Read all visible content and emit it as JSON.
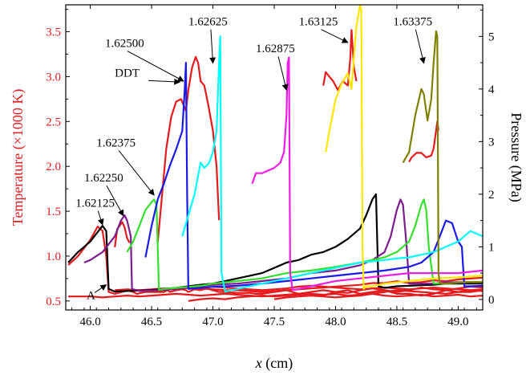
{
  "chart_data": {
    "type": "line",
    "xlabel_var": "x",
    "xlabel_unit": " (cm)",
    "ylabel_left": "Temperature (×1000 K)",
    "ylabel_right": "Pressure (MPa)",
    "xlim": [
      45.8,
      49.2
    ],
    "ylim_left": [
      0.4,
      3.8
    ],
    "ylim_right": [
      -0.2,
      5.6
    ],
    "x_ticks": [
      "46.0",
      "46.5",
      "47.0",
      "47.5",
      "48.0",
      "48.5",
      "49.0"
    ],
    "y_left_ticks": [
      "0.5",
      "1.0",
      "1.5",
      "2.0",
      "2.5",
      "3.0",
      "3.5"
    ],
    "y_right_ticks": [
      "0",
      "1",
      "2",
      "3",
      "4",
      "5"
    ],
    "left_axis_color": "#e41a1c",
    "annotations": [
      {
        "text": "1.62125",
        "tx": 45.88,
        "ty": 1.55,
        "ax": 46.1,
        "ay": 1.35
      },
      {
        "text": "1.62250",
        "tx": 45.95,
        "ty": 1.83,
        "ax": 46.27,
        "ay": 1.45
      },
      {
        "text": "1.62375",
        "tx": 46.05,
        "ty": 2.22,
        "ax": 46.52,
        "ay": 1.68
      },
      {
        "text": "1.62500",
        "tx": 46.12,
        "ty": 3.33,
        "ax": 46.76,
        "ay": 2.95
      },
      {
        "text": "1.62625",
        "tx": 46.8,
        "ty": 3.57,
        "ax": 47.0,
        "ay": 3.15
      },
      {
        "text": "1.62875",
        "tx": 47.35,
        "ty": 3.27,
        "ax": 47.6,
        "ay": 2.85
      },
      {
        "text": "1.63125",
        "tx": 47.7,
        "ty": 3.57,
        "ax": 48.1,
        "ay": 3.38
      },
      {
        "text": "1.63375",
        "tx": 48.47,
        "ty": 3.57,
        "ax": 48.72,
        "ay": 3.15
      },
      {
        "text": "DDT",
        "tx": 46.2,
        "ty": 3.0,
        "ax": 46.73,
        "ay": 2.94
      },
      {
        "text": "A",
        "tx": 45.97,
        "ty": 0.52,
        "ax": 46.13,
        "ay": 0.68
      }
    ],
    "series": [
      {
        "color": "#e41a1c",
        "axis": "left",
        "x": [
          45.82,
          45.9,
          46.0,
          46.06,
          46.1,
          46.13,
          46.15,
          46.2,
          46.26,
          46.3,
          46.35,
          46.38,
          46.45,
          46.5,
          46.55,
          46.6,
          46.63,
          46.65,
          46.7,
          46.75,
          46.78,
          46.8,
          46.85,
          46.9,
          46.95,
          47.0,
          47.05,
          47.1,
          47.2,
          47.3,
          47.35,
          47.4,
          47.5,
          47.6,
          47.7,
          47.8,
          47.9,
          48.0,
          48.1,
          48.2,
          48.3,
          48.4,
          48.5,
          48.55,
          48.6,
          48.7,
          48.8,
          48.9,
          49.0,
          49.1,
          49.2
        ],
        "y": [
          0.9,
          1.0,
          1.18,
          1.33,
          1.28,
          1.0,
          0.6,
          0.58,
          0.6,
          0.62,
          0.6,
          0.58,
          0.6,
          0.6,
          0.6,
          0.6,
          0.62,
          0.6,
          0.62,
          0.63,
          0.62,
          0.6,
          0.63,
          0.62,
          0.64,
          0.62,
          0.6,
          0.6,
          0.59,
          0.59,
          0.58,
          0.58,
          0.6,
          0.62,
          0.58,
          0.58,
          0.56,
          0.6,
          0.62,
          0.58,
          0.6,
          0.62,
          0.58,
          0.58,
          0.58,
          0.56,
          0.58,
          0.62,
          0.6,
          0.6,
          0.62
        ]
      },
      {
        "color": "#e41a1c",
        "axis": "left",
        "x": [
          45.82,
          46.0,
          46.1,
          46.2,
          46.3,
          46.4,
          46.5,
          46.6,
          46.7,
          46.8,
          46.9,
          47.0,
          47.1,
          47.2,
          47.3,
          47.4,
          47.5,
          47.6,
          47.7,
          47.8,
          47.9,
          48.0,
          48.1,
          48.2,
          48.3,
          48.4,
          48.5,
          48.6,
          48.7,
          48.8,
          48.9,
          49.0,
          49.1,
          49.2
        ],
        "y": [
          0.55,
          0.55,
          0.54,
          0.55,
          0.56,
          0.55,
          0.56,
          0.57,
          0.58,
          0.57,
          0.56,
          0.57,
          0.58,
          0.57,
          0.56,
          0.55,
          0.56,
          0.57,
          0.58,
          0.6,
          0.62,
          0.6,
          0.59,
          0.62,
          0.64,
          0.62,
          0.6,
          0.62,
          0.65,
          0.63,
          0.62,
          0.64,
          0.66,
          0.65
        ]
      },
      {
        "color": "#e41a1c",
        "axis": "left",
        "x": [
          46.2,
          46.3,
          46.4,
          46.5,
          46.6,
          46.7,
          46.8,
          46.9,
          47.0,
          47.1,
          47.2,
          47.3,
          47.4,
          47.5,
          47.6,
          47.7,
          47.8,
          47.9,
          48.0,
          48.1,
          48.2,
          48.3,
          48.4,
          48.5,
          48.6,
          48.7,
          48.8,
          48.9,
          49.0,
          49.1,
          49.2
        ],
        "y": [
          0.62,
          0.63,
          0.62,
          0.63,
          0.64,
          0.64,
          0.65,
          0.64,
          0.63,
          0.62,
          0.62,
          0.61,
          0.6,
          0.61,
          0.62,
          0.63,
          0.64,
          0.65,
          0.66,
          0.67,
          0.68,
          0.7,
          0.7,
          0.72,
          0.7,
          0.71,
          0.73,
          0.72,
          0.74,
          0.75,
          0.76
        ]
      },
      {
        "color": "#e41a1c",
        "axis": "left",
        "x": [
          46.8,
          46.9,
          47.0,
          47.1,
          47.2,
          47.3,
          47.4,
          47.5,
          47.6,
          47.7,
          47.8,
          47.9,
          48.0,
          48.1,
          48.2,
          48.3,
          48.4,
          48.5,
          48.6,
          48.7,
          48.8,
          48.9,
          49.0,
          49.1,
          49.2
        ],
        "y": [
          0.5,
          0.52,
          0.53,
          0.52,
          0.54,
          0.55,
          0.56,
          0.55,
          0.56,
          0.57,
          0.58,
          0.57,
          0.58,
          0.56,
          0.57,
          0.58,
          0.56,
          0.55,
          0.56,
          0.57,
          0.55,
          0.56,
          0.57,
          0.55,
          0.56
        ]
      },
      {
        "color": "#e41a1c",
        "axis": "left",
        "x": [
          47.0,
          47.1,
          47.2,
          47.3,
          47.4,
          47.5,
          47.6,
          47.7,
          47.8,
          47.9,
          48.0,
          48.1,
          48.2,
          48.3,
          48.4,
          48.5,
          48.6,
          48.7,
          48.8,
          48.9,
          49.0,
          49.1,
          49.2
        ],
        "y": [
          0.66,
          0.65,
          0.64,
          0.63,
          0.62,
          0.63,
          0.64,
          0.66,
          0.67,
          0.66,
          0.65,
          0.64,
          0.63,
          0.64,
          0.65,
          0.64,
          0.63,
          0.64,
          0.65,
          0.64,
          0.63,
          0.62,
          0.61
        ]
      },
      {
        "color": "#e41a1c",
        "axis": "left",
        "x": [
          47.5,
          47.6,
          47.7,
          47.8,
          47.9,
          48.0,
          48.1,
          48.2,
          48.3,
          48.4,
          48.5,
          48.6,
          48.7,
          48.8,
          48.9,
          49.0,
          49.1,
          49.2
        ],
        "y": [
          0.52,
          0.54,
          0.55,
          0.56,
          0.55,
          0.54,
          0.55,
          0.56,
          0.58,
          0.6,
          0.62,
          0.61,
          0.6,
          0.59,
          0.58,
          0.6,
          0.62,
          0.63
        ]
      },
      {
        "color": "#e41a1c",
        "axis": "left",
        "x": [
          46.2,
          46.22,
          46.26,
          46.28,
          46.3,
          46.32
        ],
        "y": [
          1.1,
          1.3,
          1.38,
          1.32,
          1.2,
          1.15
        ]
      },
      {
        "color": "#e41a1c",
        "axis": "left",
        "x": [
          46.55,
          46.58,
          46.62,
          46.66,
          46.7,
          46.74,
          46.78,
          46.8,
          46.83,
          46.86,
          46.88,
          46.9,
          46.93,
          46.96,
          47.0,
          47.03,
          47.05
        ],
        "y": [
          1.15,
          1.6,
          2.2,
          2.55,
          2.72,
          2.75,
          2.62,
          2.85,
          3.1,
          3.22,
          3.15,
          2.95,
          2.9,
          2.7,
          2.4,
          2.0,
          1.4
        ]
      },
      {
        "color": "#e41a1c",
        "axis": "left",
        "x": [
          47.9,
          47.92,
          47.95,
          47.98,
          48.02,
          48.06,
          48.1,
          48.12,
          48.13,
          48.15,
          48.17
        ],
        "y": [
          2.9,
          3.05,
          3.0,
          2.95,
          2.85,
          2.95,
          2.9,
          3.2,
          3.52,
          3.1,
          2.95
        ]
      },
      {
        "color": "#e41a1c",
        "axis": "left",
        "x": [
          48.6,
          48.62,
          48.66,
          48.7,
          48.74,
          48.78,
          48.8,
          48.82,
          48.83,
          48.84
        ],
        "y": [
          2.05,
          2.1,
          2.15,
          2.15,
          2.1,
          2.12,
          2.2,
          2.4,
          2.5,
          2.4
        ]
      },
      {
        "color": "#000000",
        "axis": "right",
        "x": [
          45.82,
          45.9,
          46.0,
          46.05,
          46.1,
          46.13,
          46.15,
          46.2,
          46.3,
          46.4,
          46.5,
          46.6,
          46.7,
          46.8,
          46.9,
          47.0,
          47.1,
          47.2,
          47.3,
          47.4,
          47.5,
          47.6,
          47.7,
          47.8,
          47.9,
          48.0,
          48.1,
          48.2,
          48.25,
          48.3,
          48.33,
          48.35,
          48.4,
          48.5,
          48.6,
          48.7,
          48.8,
          48.9,
          49.0,
          49.1,
          49.2
        ],
        "y": [
          0.7,
          0.9,
          1.1,
          1.25,
          1.4,
          1.3,
          0.2,
          0.15,
          0.16,
          0.17,
          0.18,
          0.2,
          0.22,
          0.25,
          0.28,
          0.3,
          0.35,
          0.4,
          0.45,
          0.5,
          0.6,
          0.7,
          0.75,
          0.85,
          0.9,
          1.0,
          1.15,
          1.35,
          1.6,
          1.9,
          2.0,
          0.25,
          0.22,
          0.25,
          0.26,
          0.27,
          0.28,
          0.3,
          0.3,
          0.3,
          0.3
        ]
      },
      {
        "color": "#7b1d8c",
        "axis": "right",
        "x": [
          45.95,
          46.0,
          46.1,
          46.2,
          46.25,
          46.28,
          46.3,
          46.33,
          46.34,
          46.4,
          46.5,
          46.6,
          46.7,
          46.8,
          46.9,
          47.0,
          47.2,
          47.4,
          47.6,
          47.8,
          48.0,
          48.2,
          48.3,
          48.4,
          48.45,
          48.5,
          48.53,
          48.55,
          48.58,
          48.6,
          48.7,
          48.8,
          48.9,
          49.0,
          49.1,
          49.2
        ],
        "y": [
          0.7,
          0.75,
          0.9,
          1.2,
          1.5,
          1.6,
          1.5,
          1.2,
          0.2,
          0.16,
          0.17,
          0.18,
          0.2,
          0.22,
          0.25,
          0.28,
          0.3,
          0.35,
          0.4,
          0.5,
          0.55,
          0.65,
          0.75,
          0.9,
          1.2,
          1.7,
          1.9,
          1.8,
          1.0,
          0.3,
          0.3,
          0.3,
          0.32,
          0.33,
          0.33,
          0.33
        ]
      },
      {
        "color": "#33e02c",
        "axis": "right",
        "x": [
          46.3,
          46.35,
          46.4,
          46.45,
          46.5,
          46.52,
          46.54,
          46.55,
          46.56,
          46.6,
          46.7,
          46.8,
          46.9,
          47.0,
          47.2,
          47.4,
          47.6,
          47.8,
          48.0,
          48.2,
          48.4,
          48.5,
          48.6,
          48.65,
          48.7,
          48.72,
          48.74,
          48.76,
          48.8,
          48.9,
          49.0,
          49.1,
          49.2
        ],
        "y": [
          0.9,
          1.1,
          1.4,
          1.7,
          1.85,
          1.9,
          1.8,
          1.0,
          0.18,
          0.2,
          0.22,
          0.24,
          0.26,
          0.3,
          0.35,
          0.4,
          0.5,
          0.55,
          0.62,
          0.7,
          0.8,
          0.9,
          1.1,
          1.4,
          1.8,
          1.9,
          1.7,
          1.0,
          0.3,
          0.3,
          0.32,
          0.33,
          0.33
        ]
      },
      {
        "color": "#1a1ae6",
        "axis": "right",
        "x": [
          46.45,
          46.5,
          46.55,
          46.6,
          46.65,
          46.7,
          46.75,
          46.77,
          46.78,
          46.79,
          46.8,
          46.9,
          47.0,
          47.2,
          47.4,
          47.6,
          47.8,
          48.0,
          48.2,
          48.4,
          48.6,
          48.7,
          48.8,
          48.85,
          48.9,
          48.95,
          49.0,
          49.03,
          49.05,
          49.1,
          49.2
        ],
        "y": [
          0.8,
          1.4,
          1.9,
          2.2,
          2.55,
          2.85,
          3.2,
          4.0,
          4.5,
          2.0,
          0.2,
          0.22,
          0.24,
          0.26,
          0.3,
          0.35,
          0.4,
          0.45,
          0.5,
          0.55,
          0.62,
          0.7,
          0.9,
          1.2,
          1.5,
          1.45,
          1.1,
          1.0,
          0.25,
          0.25,
          0.26
        ]
      },
      {
        "color": "#00ffff",
        "axis": "right",
        "x": [
          46.75,
          46.8,
          46.85,
          46.9,
          46.93,
          46.97,
          47.0,
          47.03,
          47.05,
          47.06,
          47.07,
          47.1,
          47.2,
          47.4,
          47.6,
          47.8,
          48.0,
          48.2,
          48.4,
          48.5,
          48.6,
          48.7,
          48.8,
          48.9,
          49.0,
          49.1,
          49.2
        ],
        "y": [
          1.2,
          1.6,
          2.0,
          2.6,
          2.5,
          2.6,
          2.8,
          3.2,
          4.5,
          5.0,
          0.5,
          0.15,
          0.2,
          0.3,
          0.4,
          0.5,
          0.6,
          0.7,
          0.75,
          0.78,
          0.8,
          0.85,
          0.9,
          1.0,
          1.1,
          1.3,
          1.2
        ]
      },
      {
        "color": "#ee1ee4",
        "axis": "right",
        "x": [
          47.32,
          47.35,
          47.4,
          47.45,
          47.5,
          47.55,
          47.58,
          47.6,
          47.61,
          47.62,
          47.63,
          47.65,
          47.7,
          47.8,
          47.9,
          48.0,
          48.2,
          48.4,
          48.6,
          48.8,
          49.0,
          49.2
        ],
        "y": [
          2.2,
          2.4,
          2.4,
          2.45,
          2.5,
          2.6,
          2.8,
          3.5,
          4.5,
          4.6,
          0.5,
          0.18,
          0.2,
          0.25,
          0.3,
          0.35,
          0.4,
          0.45,
          0.5,
          0.5,
          0.5,
          0.55
        ]
      },
      {
        "color": "#ffe600",
        "axis": "right",
        "x": [
          47.92,
          47.95,
          48.0,
          48.05,
          48.1,
          48.13,
          48.15,
          48.17,
          48.2,
          48.21,
          48.22,
          48.23,
          48.25,
          48.3,
          48.4,
          48.6,
          48.8,
          49.0,
          49.2
        ],
        "y": [
          2.8,
          3.2,
          3.8,
          4.1,
          4.3,
          4.0,
          4.6,
          5.2,
          5.6,
          5.5,
          1.0,
          0.2,
          0.25,
          0.25,
          0.3,
          0.35,
          0.4,
          0.42,
          0.45
        ]
      },
      {
        "color": "#808000",
        "axis": "right",
        "x": [
          48.55,
          48.6,
          48.65,
          48.7,
          48.72,
          48.75,
          48.78,
          48.8,
          48.82,
          48.83,
          48.84,
          48.85,
          48.9,
          49.0,
          49.1,
          49.2
        ],
        "y": [
          2.6,
          2.8,
          3.5,
          4.0,
          3.9,
          3.4,
          3.8,
          4.5,
          5.1,
          5.0,
          0.5,
          0.3,
          0.3,
          0.32,
          0.33,
          0.33
        ]
      }
    ]
  }
}
